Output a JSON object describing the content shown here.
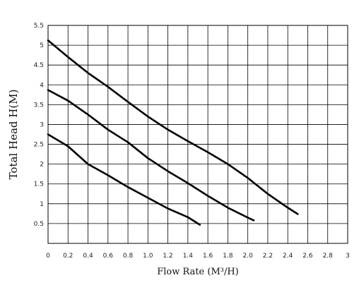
{
  "chart_data": {
    "type": "line",
    "title": "",
    "xlabel": "Flow Rate (M³/H)",
    "ylabel": "Total Head H(M)",
    "xlim": [
      0,
      3
    ],
    "ylim": [
      0,
      5.5
    ],
    "grid": true,
    "x_ticks": [
      "0",
      "0.2",
      "0.4",
      "0.6",
      "0.8",
      "1.0",
      "1.2",
      "1.4",
      "1.6",
      "1.8",
      "2.0",
      "2.2",
      "2.4",
      "2.6",
      "2.8",
      "3"
    ],
    "y_ticks": [
      "0.5",
      "1",
      "1.5",
      "2",
      "2.5",
      "3",
      "3.5",
      "4",
      "4.5",
      "5",
      "5.5"
    ],
    "series": [
      {
        "points": [
          [
            0,
            2.75
          ],
          [
            0.2,
            2.45
          ],
          [
            0.4,
            2.0
          ],
          [
            0.6,
            1.72
          ],
          [
            0.8,
            1.42
          ],
          [
            1.0,
            1.15
          ],
          [
            1.2,
            0.88
          ],
          [
            1.4,
            0.66
          ],
          [
            1.52,
            0.47
          ]
        ]
      },
      {
        "points": [
          [
            0,
            3.87
          ],
          [
            0.2,
            3.6
          ],
          [
            0.4,
            3.25
          ],
          [
            0.6,
            2.87
          ],
          [
            0.8,
            2.55
          ],
          [
            1.0,
            2.15
          ],
          [
            1.2,
            1.82
          ],
          [
            1.4,
            1.52
          ],
          [
            1.6,
            1.2
          ],
          [
            1.8,
            0.9
          ],
          [
            2.0,
            0.65
          ],
          [
            2.06,
            0.58
          ]
        ]
      },
      {
        "points": [
          [
            0,
            5.12
          ],
          [
            0.2,
            4.7
          ],
          [
            0.4,
            4.3
          ],
          [
            0.6,
            3.95
          ],
          [
            0.8,
            3.57
          ],
          [
            1.0,
            3.2
          ],
          [
            1.2,
            2.87
          ],
          [
            1.4,
            2.58
          ],
          [
            1.6,
            2.3
          ],
          [
            1.8,
            2.0
          ],
          [
            2.0,
            1.65
          ],
          [
            2.2,
            1.25
          ],
          [
            2.4,
            0.9
          ],
          [
            2.5,
            0.74
          ]
        ]
      }
    ]
  }
}
